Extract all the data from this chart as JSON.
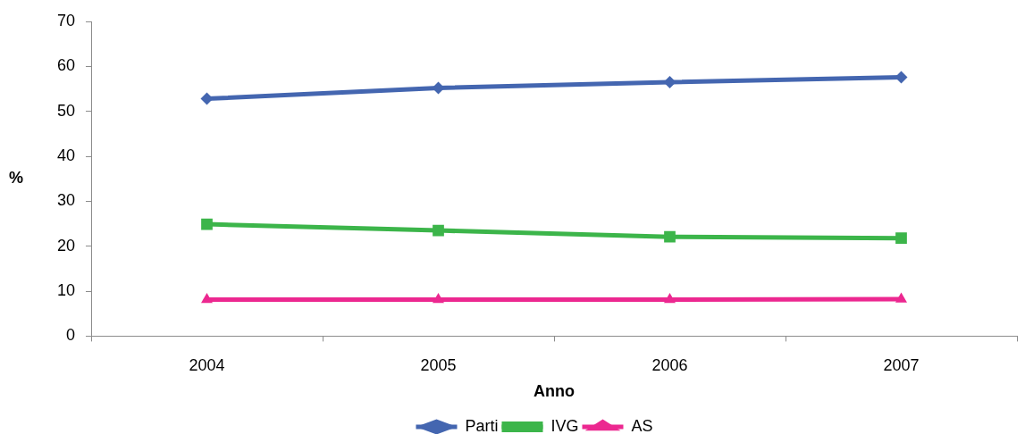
{
  "chart_data": {
    "type": "line",
    "xlabel": "Anno",
    "ylabel": "%",
    "categories": [
      "2004",
      "2005",
      "2006",
      "2007"
    ],
    "ylim": [
      0,
      70
    ],
    "yticks": [
      0,
      10,
      20,
      30,
      40,
      50,
      60,
      70
    ],
    "legend": "bottom",
    "line_style": "solid",
    "series": [
      {
        "name": "Parti",
        "color": "#4466b0",
        "marker": "diamond",
        "values": [
          52.8,
          55.2,
          56.5,
          57.6
        ]
      },
      {
        "name": "IVG",
        "color": "#3cb54a",
        "marker": "square",
        "values": [
          24.9,
          23.5,
          22.1,
          21.8
        ]
      },
      {
        "name": "AS",
        "color": "#ec2890",
        "marker": "triangle",
        "values": [
          8.1,
          8.1,
          8.1,
          8.2
        ]
      }
    ]
  }
}
